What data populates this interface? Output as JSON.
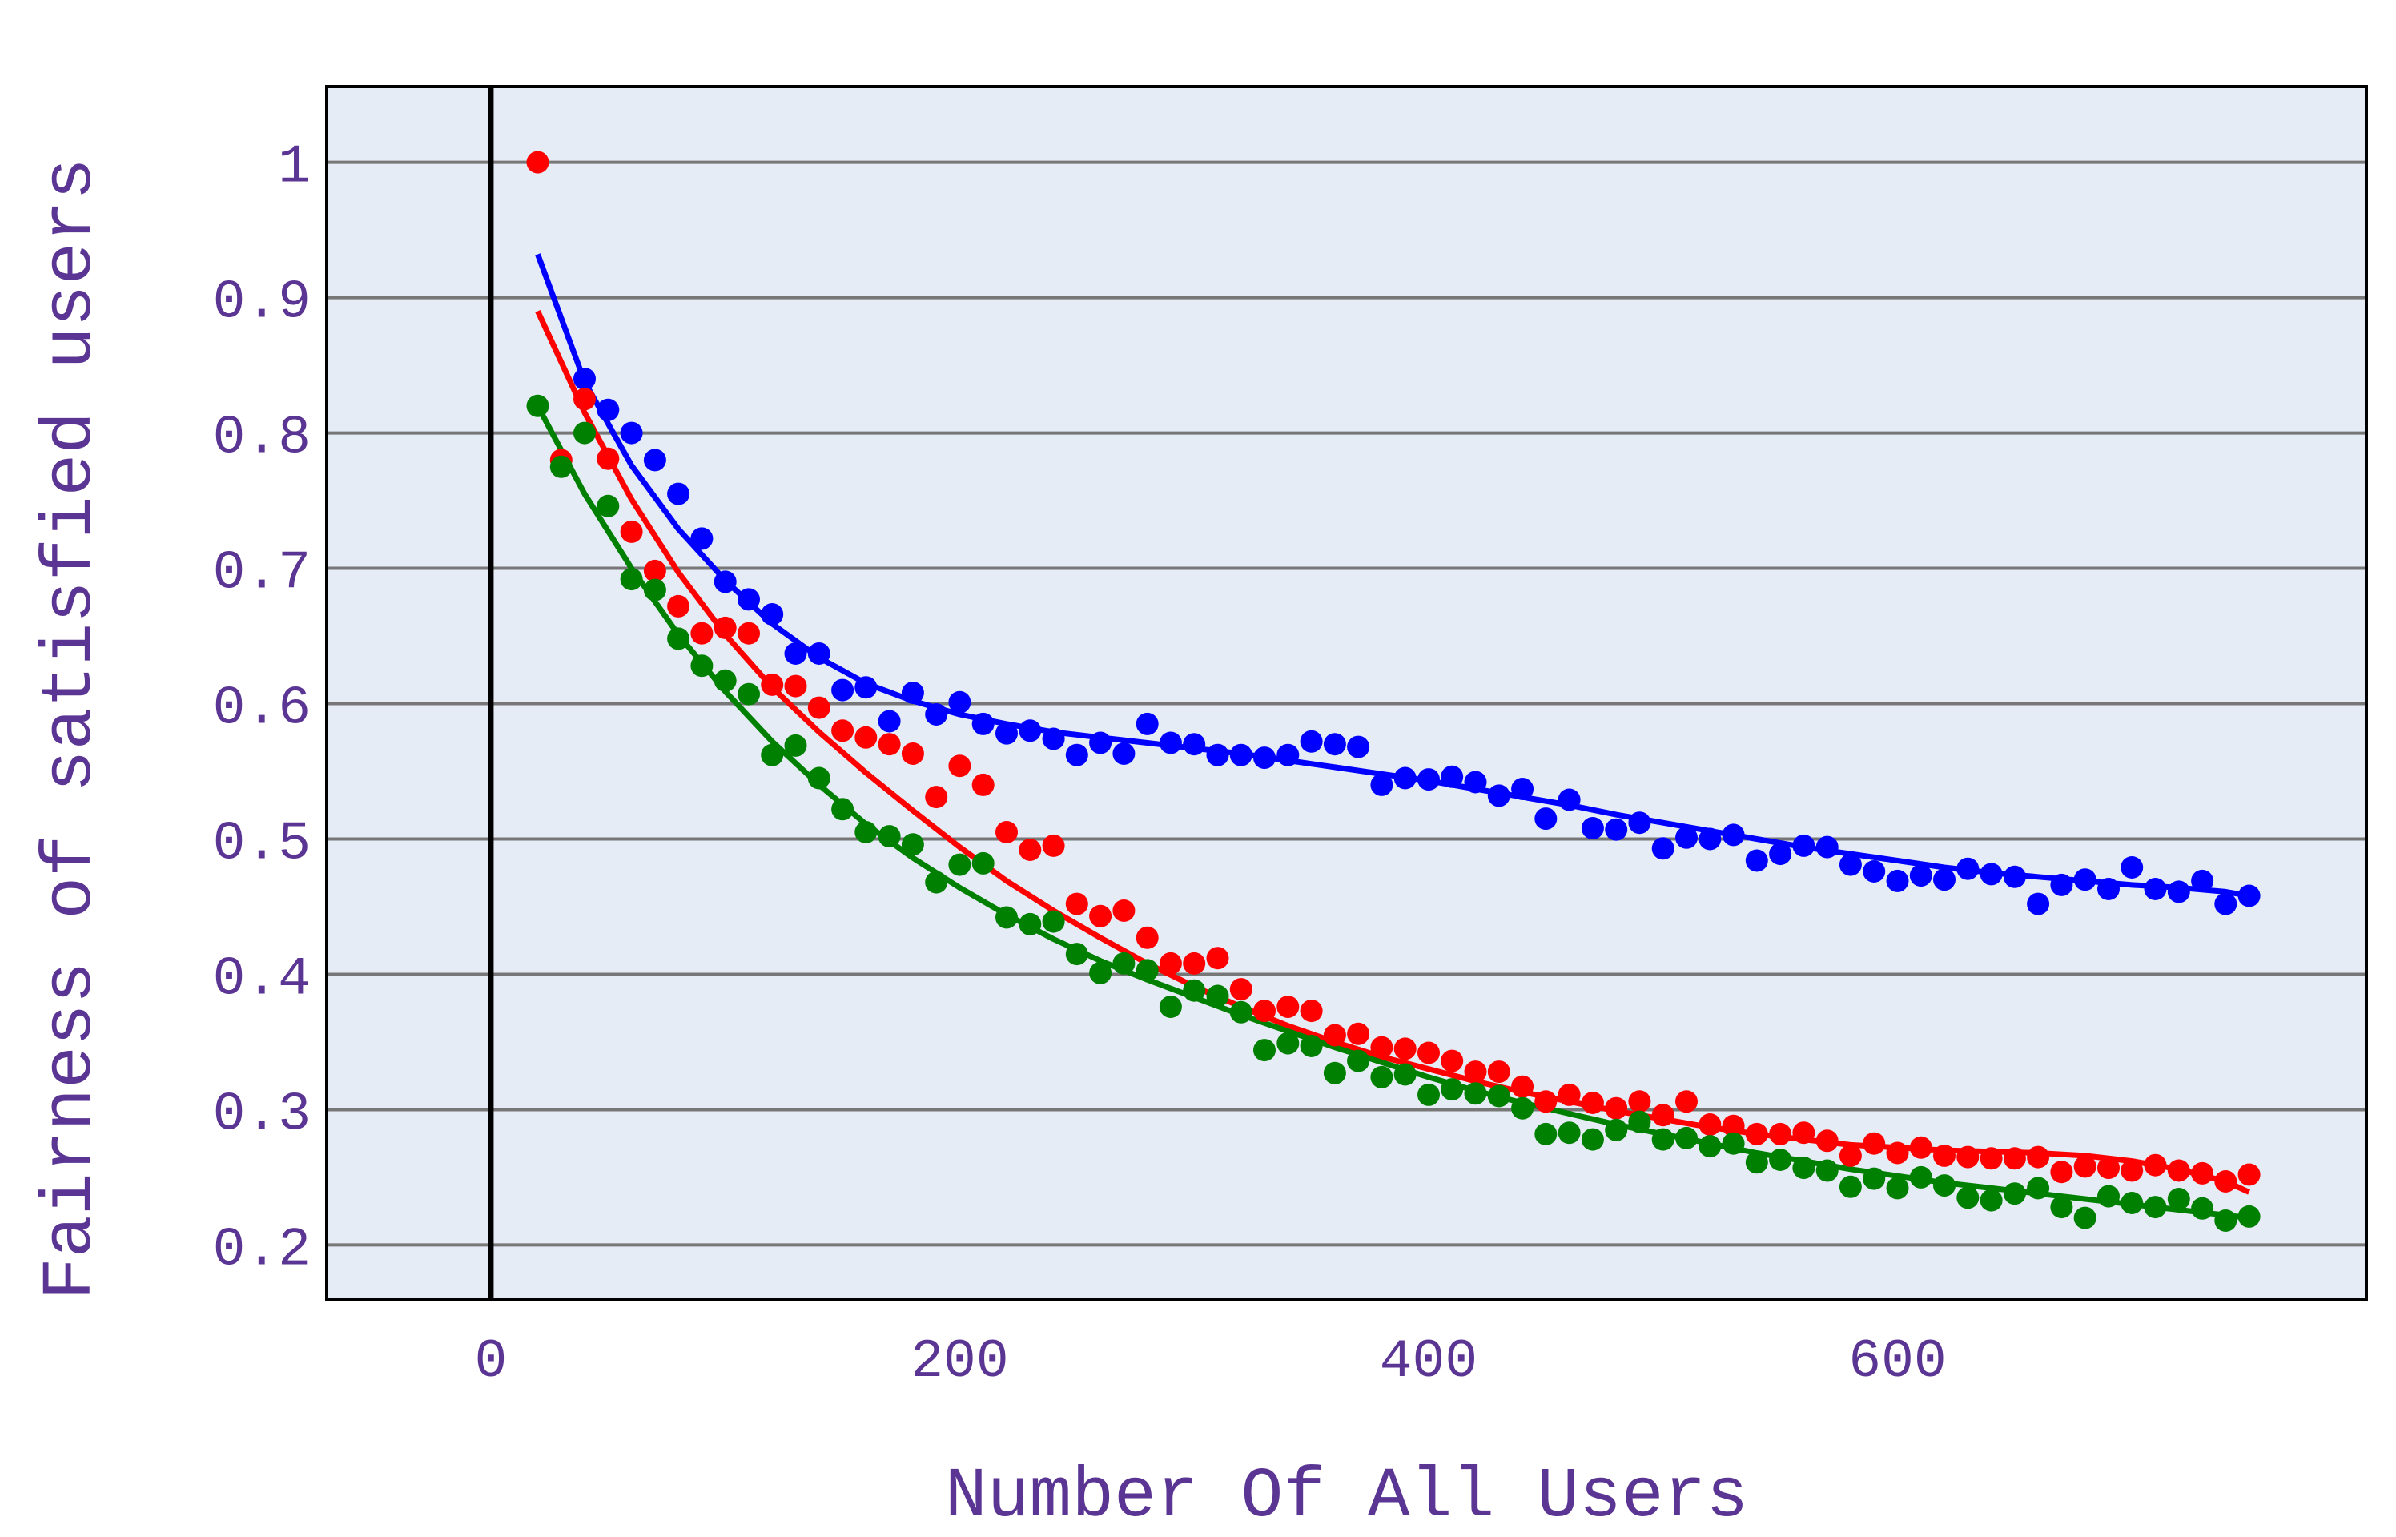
{
  "chart_data": {
    "type": "scatter",
    "title": "",
    "xlabel": "Number Of All Users",
    "ylabel": "Fairness of satisfied users",
    "xlim": [
      -70,
      800
    ],
    "ylim": [
      0.16,
      1.056
    ],
    "xticks": [
      0,
      200,
      400,
      600
    ],
    "xtick_labels": [
      "0",
      "200",
      "400",
      "600"
    ],
    "yticks": [
      0.2,
      0.3,
      0.4,
      0.5,
      0.6,
      0.7,
      0.8,
      0.9,
      1.0
    ],
    "ytick_labels": [
      "0.2",
      "0.3",
      "0.4",
      "0.5",
      "0.6",
      "0.7",
      "0.8",
      "0.9",
      "1"
    ],
    "grid": "horizontal",
    "legend": "none",
    "colors": {
      "plot_bg": "#e5ecf6",
      "grid": "#777777",
      "text": "#5b3593",
      "zero_line": "#000000"
    },
    "series": [
      {
        "color": "#0000ff",
        "x": [
          40,
          50,
          60,
          70,
          80,
          90,
          100,
          110,
          120,
          130,
          140,
          150,
          160,
          170,
          180,
          190,
          200,
          210,
          220,
          230,
          240,
          250,
          260,
          270,
          280,
          290,
          300,
          310,
          320,
          330,
          340,
          350,
          360,
          370,
          380,
          390,
          400,
          410,
          420,
          430,
          440,
          450,
          460,
          470,
          480,
          490,
          500,
          510,
          520,
          530,
          540,
          550,
          560,
          570,
          580,
          590,
          600,
          610,
          620,
          630,
          640,
          650,
          660,
          670,
          680,
          690,
          700,
          710,
          720,
          730,
          740,
          750
        ],
        "y": [
          0.84,
          0.817,
          0.8,
          0.78,
          0.755,
          0.722,
          0.69,
          0.677,
          0.666,
          0.637,
          0.637,
          0.61,
          0.612,
          0.587,
          0.608,
          0.592,
          0.601,
          0.585,
          0.578,
          0.58,
          0.574,
          0.562,
          0.571,
          0.563,
          0.585,
          0.571,
          0.57,
          0.562,
          0.562,
          0.56,
          0.562,
          0.572,
          0.57,
          0.568,
          0.54,
          0.545,
          0.544,
          0.546,
          0.542,
          0.532,
          0.537,
          0.515,
          0.529,
          0.508,
          0.507,
          0.512,
          0.493,
          0.501,
          0.5,
          0.503,
          0.484,
          0.489,
          0.495,
          0.494,
          0.481,
          0.476,
          0.469,
          0.473,
          0.47,
          0.478,
          0.474,
          0.472,
          0.452,
          0.466,
          0.47,
          0.463,
          0.479,
          0.463,
          0.461,
          0.469,
          0.452,
          0.458
        ],
        "fit_x": [
          20,
          40,
          60,
          80,
          100,
          120,
          140,
          160,
          180,
          200,
          220,
          240,
          260,
          280,
          300,
          320,
          340,
          360,
          380,
          400,
          420,
          440,
          460,
          480,
          500,
          520,
          540,
          560,
          580,
          600,
          620,
          640,
          660,
          680,
          700,
          720,
          740,
          750
        ],
        "fit_y": [
          0.932,
          0.838,
          0.776,
          0.729,
          0.691,
          0.659,
          0.634,
          0.615,
          0.602,
          0.592,
          0.585,
          0.579,
          0.575,
          0.571,
          0.567,
          0.563,
          0.558,
          0.553,
          0.548,
          0.543,
          0.537,
          0.531,
          0.525,
          0.518,
          0.512,
          0.506,
          0.5,
          0.494,
          0.489,
          0.484,
          0.479,
          0.475,
          0.472,
          0.469,
          0.466,
          0.464,
          0.461,
          0.458
        ]
      },
      {
        "color": "#ff0000",
        "x": [
          20,
          30,
          40,
          50,
          60,
          70,
          80,
          90,
          100,
          110,
          120,
          130,
          140,
          150,
          160,
          170,
          180,
          190,
          200,
          210,
          220,
          230,
          240,
          250,
          260,
          270,
          280,
          290,
          300,
          310,
          320,
          330,
          340,
          350,
          360,
          370,
          380,
          390,
          400,
          410,
          420,
          430,
          440,
          450,
          460,
          470,
          480,
          490,
          500,
          510,
          520,
          530,
          540,
          550,
          560,
          570,
          580,
          590,
          600,
          610,
          620,
          630,
          640,
          650,
          660,
          670,
          680,
          690,
          700,
          710,
          720,
          730,
          740,
          750
        ],
        "y": [
          1.0,
          0.78,
          0.825,
          0.781,
          0.727,
          0.698,
          0.672,
          0.652,
          0.656,
          0.652,
          0.614,
          0.613,
          0.597,
          0.58,
          0.575,
          0.57,
          0.563,
          0.531,
          0.554,
          0.54,
          0.505,
          0.492,
          0.495,
          0.452,
          0.443,
          0.447,
          0.427,
          0.408,
          0.408,
          0.412,
          0.389,
          0.373,
          0.376,
          0.373,
          0.355,
          0.356,
          0.346,
          0.345,
          0.342,
          0.336,
          0.328,
          0.328,
          0.317,
          0.306,
          0.311,
          0.305,
          0.301,
          0.306,
          0.296,
          0.306,
          0.289,
          0.288,
          0.282,
          0.282,
          0.283,
          0.277,
          0.266,
          0.275,
          0.268,
          0.272,
          0.266,
          0.265,
          0.264,
          0.264,
          0.265,
          0.254,
          0.258,
          0.257,
          0.255,
          0.259,
          0.255,
          0.253,
          0.247,
          0.252
        ],
        "fit_x": [
          20,
          40,
          60,
          80,
          100,
          120,
          140,
          160,
          180,
          200,
          220,
          240,
          260,
          280,
          300,
          320,
          340,
          360,
          380,
          400,
          420,
          440,
          460,
          480,
          500,
          520,
          540,
          560,
          580,
          600,
          620,
          640,
          660,
          680,
          700,
          720,
          740,
          750
        ],
        "fit_y": [
          0.89,
          0.815,
          0.751,
          0.697,
          0.651,
          0.612,
          0.579,
          0.549,
          0.521,
          0.494,
          0.469,
          0.447,
          0.427,
          0.408,
          0.391,
          0.376,
          0.362,
          0.35,
          0.339,
          0.33,
          0.321,
          0.313,
          0.306,
          0.299,
          0.293,
          0.287,
          0.282,
          0.278,
          0.274,
          0.272,
          0.27,
          0.269,
          0.268,
          0.266,
          0.262,
          0.256,
          0.247,
          0.239
        ]
      },
      {
        "color": "#008000",
        "x": [
          20,
          30,
          40,
          50,
          60,
          70,
          80,
          90,
          100,
          110,
          120,
          130,
          140,
          150,
          160,
          170,
          180,
          190,
          200,
          210,
          220,
          230,
          240,
          250,
          260,
          270,
          280,
          290,
          300,
          310,
          320,
          330,
          340,
          350,
          360,
          370,
          380,
          390,
          400,
          410,
          420,
          430,
          440,
          450,
          460,
          470,
          480,
          490,
          500,
          510,
          520,
          530,
          540,
          550,
          560,
          570,
          580,
          590,
          600,
          610,
          620,
          630,
          640,
          650,
          660,
          670,
          680,
          690,
          700,
          710,
          720,
          730,
          740,
          750
        ],
        "y": [
          0.82,
          0.775,
          0.8,
          0.746,
          0.692,
          0.684,
          0.648,
          0.628,
          0.617,
          0.607,
          0.562,
          0.569,
          0.545,
          0.522,
          0.505,
          0.502,
          0.496,
          0.468,
          0.481,
          0.482,
          0.442,
          0.437,
          0.439,
          0.415,
          0.401,
          0.408,
          0.403,
          0.376,
          0.388,
          0.384,
          0.372,
          0.344,
          0.349,
          0.347,
          0.327,
          0.336,
          0.324,
          0.326,
          0.311,
          0.315,
          0.312,
          0.31,
          0.301,
          0.282,
          0.283,
          0.278,
          0.285,
          0.291,
          0.278,
          0.279,
          0.273,
          0.275,
          0.261,
          0.263,
          0.257,
          0.255,
          0.243,
          0.249,
          0.242,
          0.25,
          0.244,
          0.235,
          0.233,
          0.238,
          0.242,
          0.228,
          0.22,
          0.236,
          0.231,
          0.228,
          0.234,
          0.227,
          0.218,
          0.221
        ],
        "fit_x": [
          20,
          40,
          60,
          80,
          100,
          120,
          140,
          160,
          180,
          200,
          220,
          240,
          260,
          280,
          300,
          320,
          340,
          360,
          380,
          400,
          420,
          440,
          460,
          480,
          500,
          520,
          540,
          560,
          580,
          600,
          620,
          640,
          660,
          680,
          700,
          720,
          740,
          750
        ],
        "fit_y": [
          0.82,
          0.755,
          0.7,
          0.651,
          0.609,
          0.572,
          0.54,
          0.511,
          0.486,
          0.464,
          0.444,
          0.426,
          0.41,
          0.396,
          0.383,
          0.37,
          0.358,
          0.346,
          0.335,
          0.324,
          0.314,
          0.305,
          0.297,
          0.289,
          0.282,
          0.275,
          0.268,
          0.262,
          0.256,
          0.251,
          0.246,
          0.242,
          0.238,
          0.234,
          0.23,
          0.226,
          0.222,
          0.22
        ]
      }
    ]
  }
}
